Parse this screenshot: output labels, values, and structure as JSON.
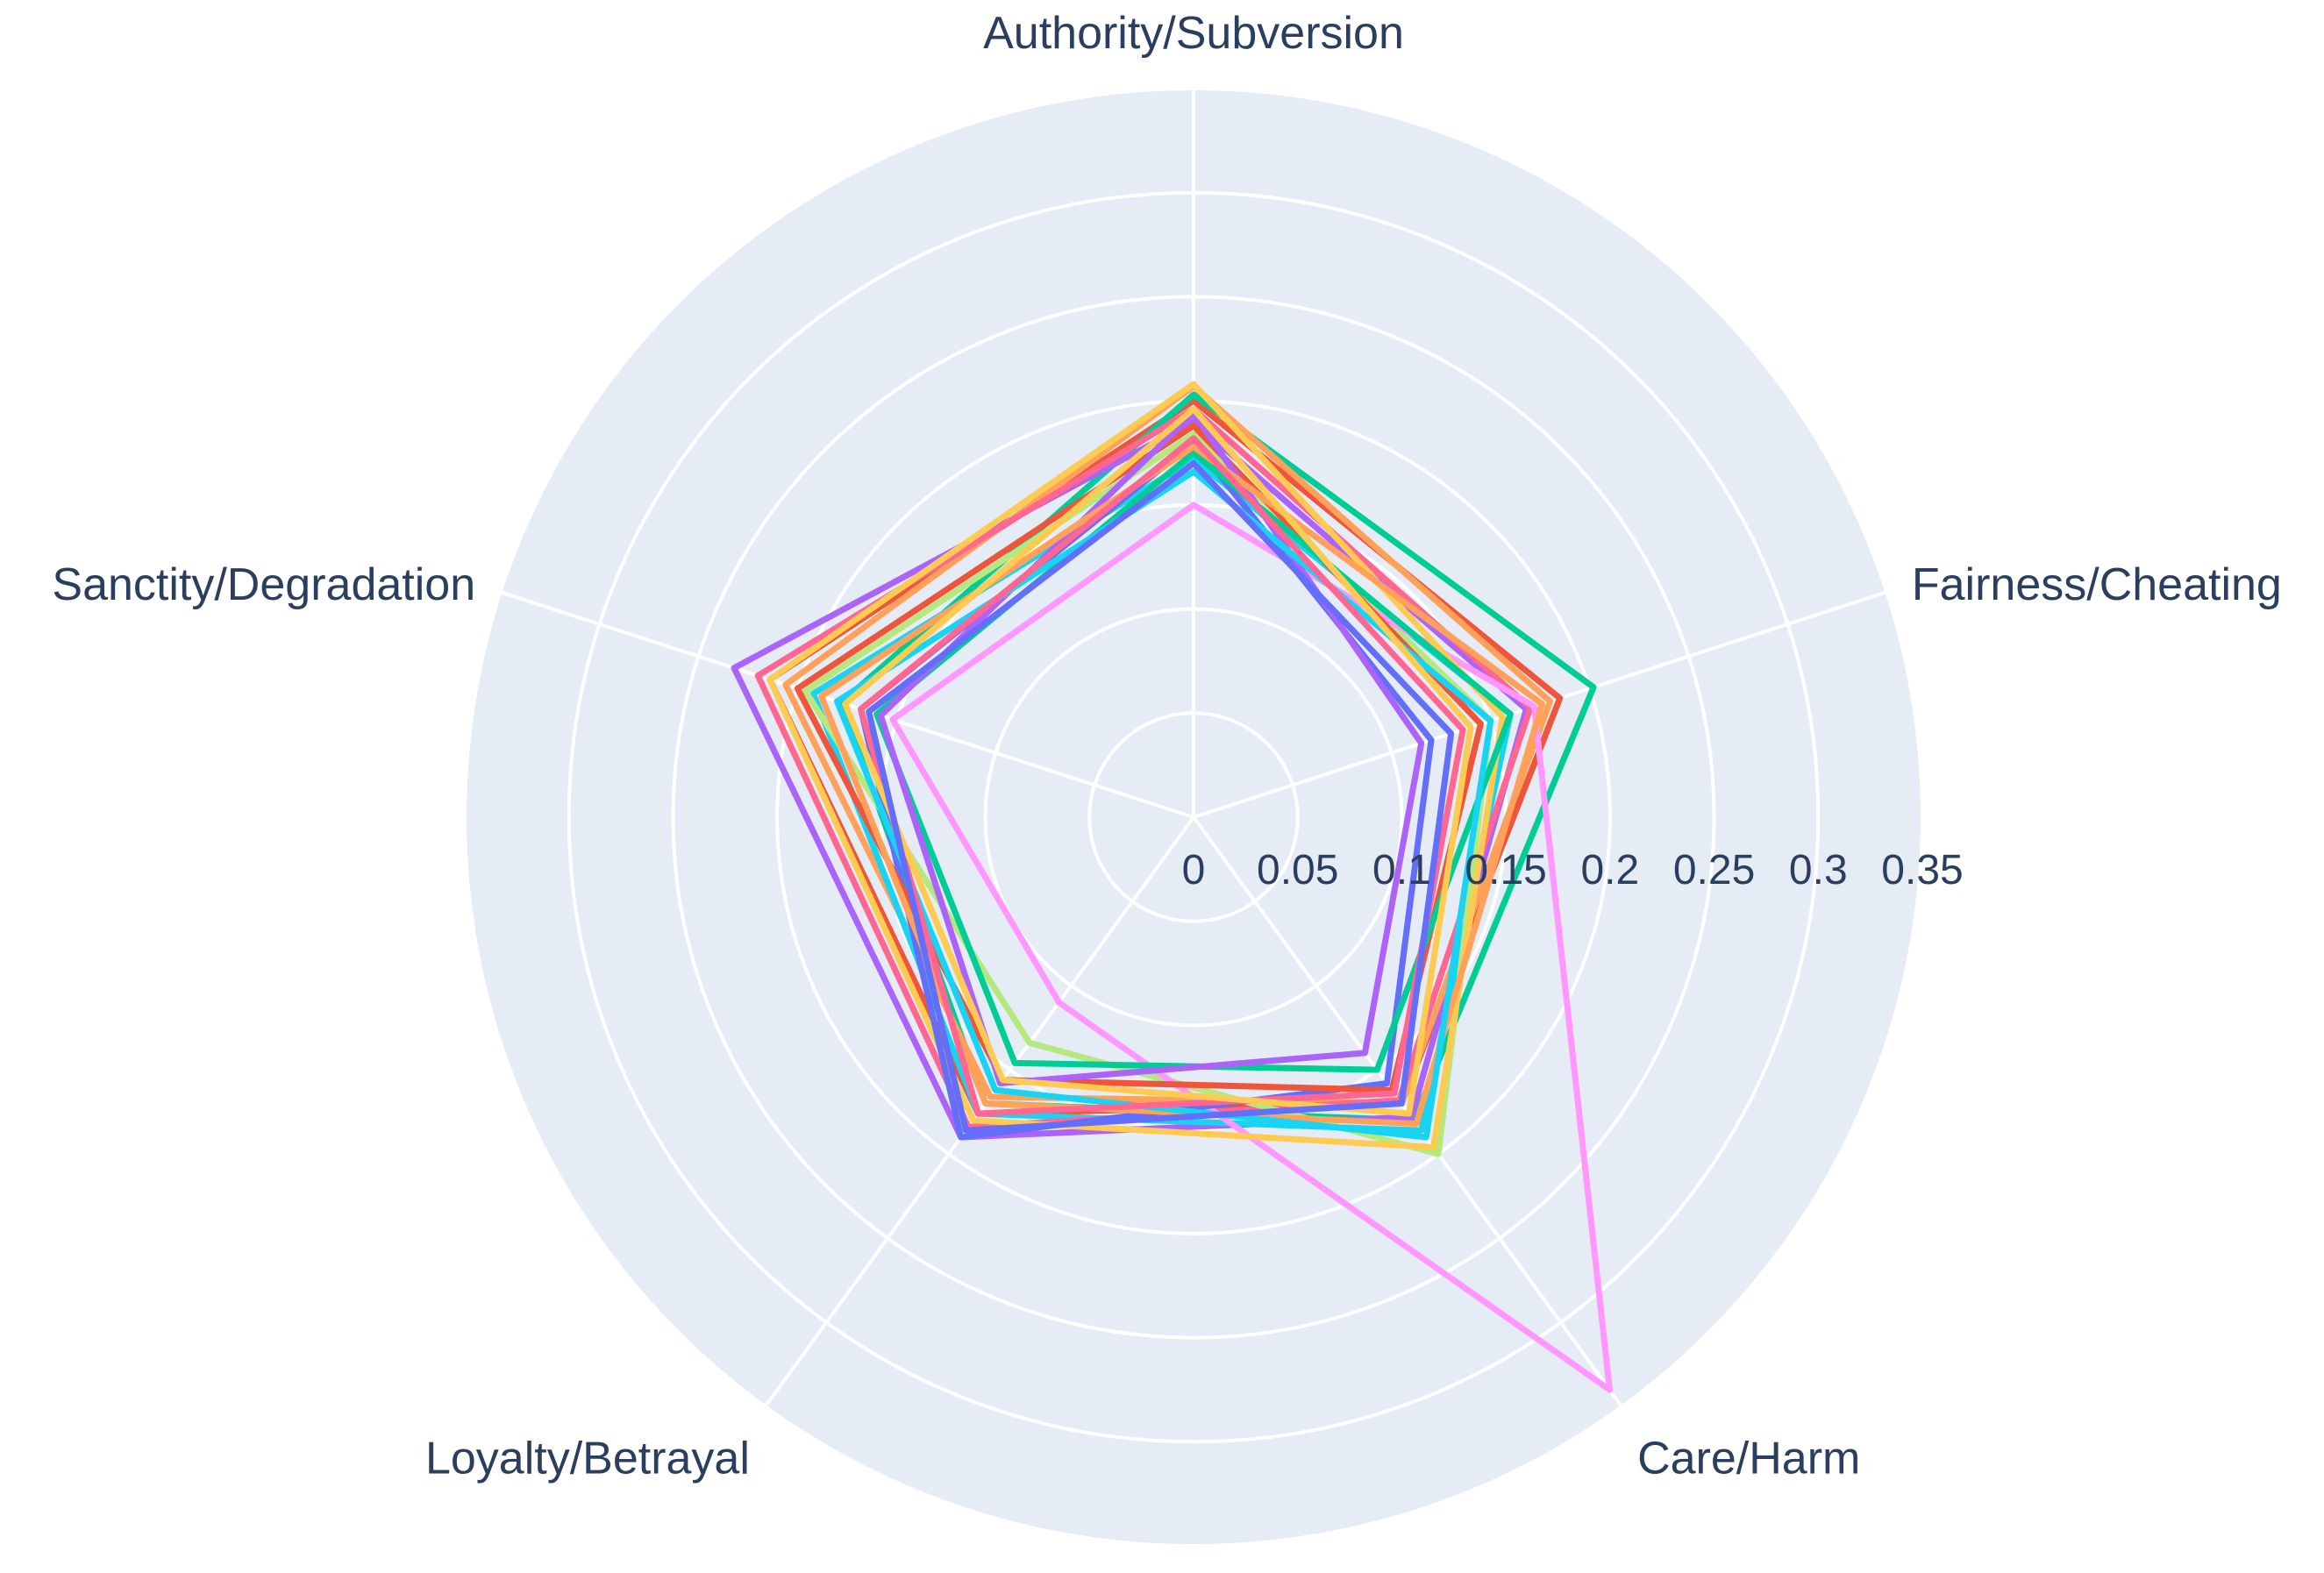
{
  "chart_data": {
    "type": "radar",
    "axes": [
      "Fairness/Cheating",
      "Care/Harm",
      "Loyalty/Betrayal",
      "Sanctity/Degradation",
      "Authority/Subversion"
    ],
    "radial_ticks": [
      "0",
      "0.05",
      "0.1",
      "0.15",
      "0.2",
      "0.25",
      "0.3",
      "0.35"
    ],
    "radial_range": [
      0,
      0.35
    ],
    "grid": true,
    "legend": "none",
    "colors": {
      "plot_bg": "#e5ecf6",
      "grid": "#ffffff",
      "text": "#2a3f5f"
    },
    "series": [
      {
        "color": "#ef553b",
        "values": [
          0.185,
          0.17,
          0.176,
          0.214,
          0.2
        ]
      },
      {
        "color": "#00cc96",
        "values": [
          0.202,
          0.18,
          0.17,
          0.178,
          0.203
        ]
      },
      {
        "color": "#ab63fa",
        "values": [
          0.168,
          0.178,
          0.19,
          0.232,
          0.19
        ]
      },
      {
        "color": "#ffa15a",
        "values": [
          0.18,
          0.17,
          0.166,
          0.206,
          0.207
        ]
      },
      {
        "color": "#19d3f3",
        "values": [
          0.16,
          0.186,
          0.176,
          0.192,
          0.172
        ]
      },
      {
        "color": "#ff6692",
        "values": [
          0.17,
          0.168,
          0.184,
          0.22,
          0.196
        ]
      },
      {
        "color": "#b6e880",
        "values": [
          0.15,
          0.2,
          0.134,
          0.196,
          0.184
        ]
      },
      {
        "color": "#ff97ff",
        "values": [
          0.172,
          0.34,
          0.11,
          0.152,
          0.15
        ]
      },
      {
        "color": "#fecb52",
        "values": [
          0.156,
          0.196,
          0.18,
          0.214,
          0.208
        ]
      },
      {
        "color": "#636efa",
        "values": [
          0.12,
          0.158,
          0.19,
          0.168,
          0.18
        ]
      },
      {
        "color": "#ef553b",
        "values": [
          0.145,
          0.162,
          0.156,
          0.2,
          0.188
        ]
      },
      {
        "color": "#00cc96",
        "values": [
          0.16,
          0.15,
          0.146,
          0.16,
          0.175
        ]
      },
      {
        "color": "#ab63fa",
        "values": [
          0.115,
          0.14,
          0.158,
          0.158,
          0.194
        ]
      },
      {
        "color": "#ffa15a",
        "values": [
          0.176,
          0.182,
          0.17,
          0.188,
          0.178
        ]
      },
      {
        "color": "#19d3f3",
        "values": [
          0.15,
          0.19,
          0.162,
          0.18,
          0.166
        ]
      },
      {
        "color": "#ff6692",
        "values": [
          0.136,
          0.164,
          0.176,
          0.168,
          0.182
        ]
      },
      {
        "color": "#fecb52",
        "values": [
          0.14,
          0.176,
          0.156,
          0.176,
          0.196
        ]
      },
      {
        "color": "#636efa",
        "values": [
          0.13,
          0.17,
          0.186,
          0.164,
          0.17
        ]
      }
    ]
  }
}
